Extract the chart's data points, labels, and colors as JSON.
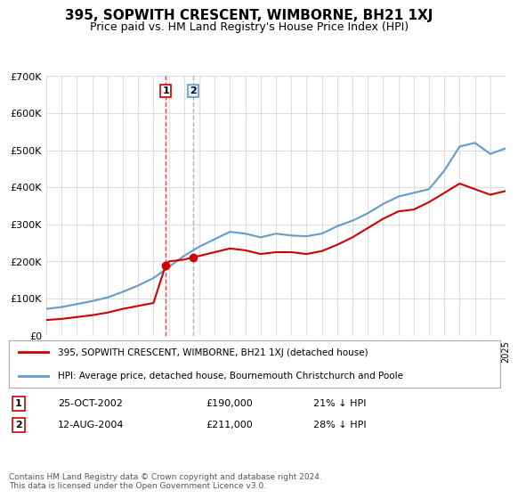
{
  "title": "395, SOPWITH CRESCENT, WIMBORNE, BH21 1XJ",
  "subtitle": "Price paid vs. HM Land Registry's House Price Index (HPI)",
  "legend_line1": "395, SOPWITH CRESCENT, WIMBORNE, BH21 1XJ (detached house)",
  "legend_line2": "HPI: Average price, detached house, Bournemouth Christchurch and Poole",
  "footnote": "Contains HM Land Registry data © Crown copyright and database right 2024.\nThis data is licensed under the Open Government Licence v3.0.",
  "sale1_label": "1",
  "sale1_date": "25-OCT-2002",
  "sale1_price": "£190,000",
  "sale1_hpi": "21% ↓ HPI",
  "sale1_year": 2002.8,
  "sale1_value": 190000,
  "sale2_label": "2",
  "sale2_date": "12-AUG-2004",
  "sale2_price": "£211,000",
  "sale2_hpi": "28% ↓ HPI",
  "sale2_year": 2004.6,
  "sale2_value": 211000,
  "red_color": "#cc0000",
  "blue_color": "#6699cc",
  "grid_color": "#dddddd",
  "background_color": "#ffffff",
  "ylim": [
    0,
    700000
  ],
  "yticks": [
    0,
    100000,
    200000,
    300000,
    400000,
    500000,
    600000,
    700000
  ],
  "ytick_labels": [
    "£0",
    "£100K",
    "£200K",
    "£300K",
    "£400K",
    "£500K",
    "£600K",
    "£700K"
  ],
  "hpi_years": [
    1995,
    1996,
    1997,
    1998,
    1999,
    2000,
    2001,
    2002,
    2003,
    2004,
    2005,
    2006,
    2007,
    2008,
    2009,
    2010,
    2011,
    2012,
    2013,
    2014,
    2015,
    2016,
    2017,
    2018,
    2019,
    2020,
    2021,
    2022,
    2023,
    2024,
    2025
  ],
  "hpi_values": [
    72000,
    77000,
    85000,
    93000,
    103000,
    118000,
    135000,
    155000,
    185000,
    215000,
    240000,
    260000,
    280000,
    275000,
    265000,
    275000,
    270000,
    268000,
    275000,
    295000,
    310000,
    330000,
    355000,
    375000,
    385000,
    395000,
    445000,
    510000,
    520000,
    490000,
    505000
  ],
  "red_years": [
    1995,
    1996,
    1997,
    1998,
    1999,
    2000,
    2001,
    2002,
    2002.8,
    2003,
    2004,
    2004.6,
    2005,
    2006,
    2007,
    2008,
    2009,
    2010,
    2011,
    2012,
    2013,
    2014,
    2015,
    2016,
    2017,
    2018,
    2019,
    2020,
    2021,
    2022,
    2023,
    2024,
    2025
  ],
  "red_values": [
    42000,
    45000,
    50000,
    55000,
    62000,
    72000,
    80000,
    88000,
    190000,
    200000,
    205000,
    211000,
    215000,
    225000,
    235000,
    230000,
    220000,
    225000,
    225000,
    220000,
    228000,
    245000,
    265000,
    290000,
    315000,
    335000,
    340000,
    360000,
    385000,
    410000,
    395000,
    380000,
    390000
  ]
}
